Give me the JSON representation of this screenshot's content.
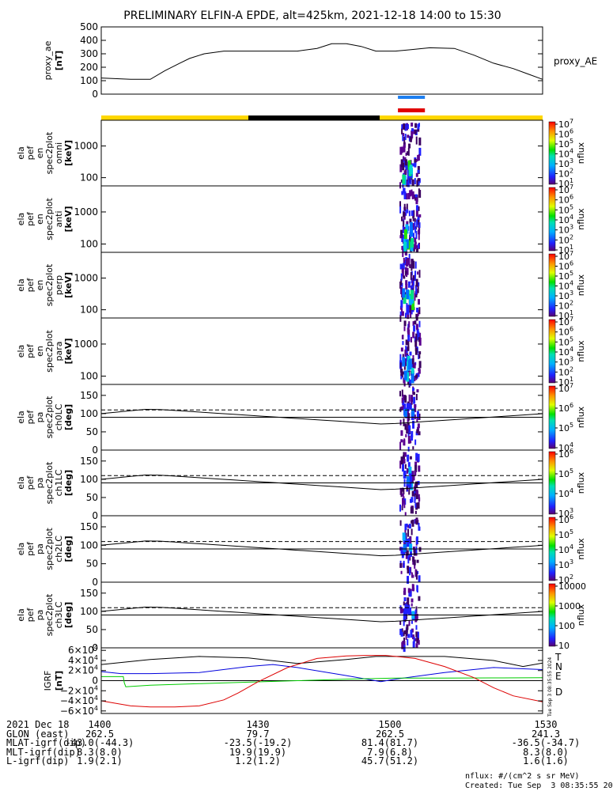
{
  "title": "PRELIMINARY ELFIN-A EPDE, alt=425km, 2021-12-18 14:00 to 15:30",
  "colors": {
    "yellow": "#ffd700",
    "black": "#000000",
    "blue": "#1e7ff0",
    "red": "#e00000",
    "ibx": "#000000",
    "iby": "#0000dd",
    "ibz": "#00cc00",
    "d": "#dd0000"
  },
  "chart_data": [
    {
      "type": "line",
      "ylabel_lines": [
        "proxy_ae",
        "[nT]"
      ],
      "ylim": [
        0,
        500
      ],
      "yticks": [
        "0",
        "100",
        "200",
        "300",
        "400",
        "500"
      ],
      "ytick_values": [
        0,
        100,
        200,
        300,
        400,
        500
      ],
      "legend": "proxy_AE",
      "series": [
        {
          "x": [
            0,
            6,
            10,
            13,
            16,
            18,
            21,
            25,
            29,
            36,
            40,
            44,
            47,
            50,
            53,
            56,
            60,
            63,
            67,
            72,
            76,
            80,
            84,
            87,
            90
          ],
          "values": [
            120,
            110,
            110,
            175,
            230,
            265,
            300,
            320,
            320,
            320,
            320,
            340,
            375,
            375,
            355,
            320,
            320,
            330,
            345,
            340,
            290,
            230,
            190,
            150,
            110
          ]
        }
      ]
    },
    {
      "type": "heatmap",
      "ylabel_lines": [
        "ela",
        "pef",
        "en",
        "spec2plot",
        "omni",
        "[keV]"
      ],
      "yscale": "log",
      "ylim": [
        55,
        6500
      ],
      "yticks": [
        "100",
        "1000"
      ],
      "ytick_values": [
        100,
        1000
      ],
      "colorbar": {
        "label": "nflux",
        "ticks": [
          "10",
          "10",
          "10",
          "10",
          "10",
          "10",
          "10"
        ],
        "exponents": [
          "1",
          "2",
          "3",
          "4",
          "5",
          "6",
          "7"
        ]
      }
    },
    {
      "type": "heatmap",
      "ylabel_lines": [
        "ela",
        "pef",
        "en",
        "spec2plot",
        "anti",
        "[keV]"
      ],
      "yscale": "log",
      "ylim": [
        55,
        6500
      ],
      "yticks": [
        "100",
        "1000"
      ],
      "ytick_values": [
        100,
        1000
      ],
      "colorbar": {
        "label": "nflux",
        "ticks": [
          "10",
          "10",
          "10",
          "10",
          "10",
          "10",
          "10"
        ],
        "exponents": [
          "1",
          "2",
          "3",
          "4",
          "5",
          "6",
          "7"
        ]
      }
    },
    {
      "type": "heatmap",
      "ylabel_lines": [
        "ela",
        "pef",
        "en",
        "spec2plot",
        "perp",
        "[keV]"
      ],
      "yscale": "log",
      "ylim": [
        55,
        6500
      ],
      "yticks": [
        "100",
        "1000"
      ],
      "ytick_values": [
        100,
        1000
      ],
      "colorbar": {
        "label": "nflux",
        "ticks": [
          "10",
          "10",
          "10",
          "10",
          "10",
          "10",
          "10"
        ],
        "exponents": [
          "1",
          "2",
          "3",
          "4",
          "5",
          "6",
          "7"
        ]
      }
    },
    {
      "type": "heatmap",
      "ylabel_lines": [
        "ela",
        "pef",
        "en",
        "spec2plot",
        "para",
        "[keV]"
      ],
      "yscale": "log",
      "ylim": [
        55,
        6500
      ],
      "yticks": [
        "100",
        "1000"
      ],
      "ytick_values": [
        100,
        1000
      ],
      "colorbar": {
        "label": "nflux",
        "ticks": [
          "10",
          "10",
          "10",
          "10",
          "10",
          "10",
          "10"
        ],
        "exponents": [
          "1",
          "2",
          "3",
          "4",
          "5",
          "6",
          "7"
        ]
      }
    },
    {
      "type": "heatmap",
      "ylabel_lines": [
        "ela",
        "pef",
        "pa",
        "spec2plot",
        "ch0LC",
        "[deg]"
      ],
      "ylim": [
        0,
        180
      ],
      "yticks": [
        "0",
        "50",
        "100",
        "150"
      ],
      "ytick_values": [
        0,
        50,
        100,
        150
      ],
      "colorbar": {
        "label": "nflux",
        "ticks": [
          "10",
          "10",
          "10",
          "10"
        ],
        "exponents": [
          "4",
          "5",
          "6",
          "7"
        ]
      }
    },
    {
      "type": "heatmap",
      "ylabel_lines": [
        "ela",
        "pef",
        "pa",
        "spec2plot",
        "ch1LC",
        "[deg]"
      ],
      "ylim": [
        0,
        180
      ],
      "yticks": [
        "0",
        "50",
        "100",
        "150"
      ],
      "ytick_values": [
        0,
        50,
        100,
        150
      ],
      "colorbar": {
        "label": "nflux",
        "ticks": [
          "10",
          "10",
          "10",
          "10"
        ],
        "exponents": [
          "3",
          "4",
          "5",
          "6"
        ]
      }
    },
    {
      "type": "heatmap",
      "ylabel_lines": [
        "ela",
        "pef",
        "pa",
        "spec2plot",
        "ch2LC",
        "[deg]"
      ],
      "ylim": [
        0,
        180
      ],
      "yticks": [
        "0",
        "50",
        "100",
        "150"
      ],
      "ytick_values": [
        0,
        50,
        100,
        150
      ],
      "colorbar": {
        "label": "nflux",
        "ticks": [
          "10",
          "10",
          "10",
          "10",
          "10"
        ],
        "exponents": [
          "2",
          "3",
          "4",
          "5",
          "6"
        ]
      }
    },
    {
      "type": "heatmap",
      "ylabel_lines": [
        "ela",
        "pef",
        "pa",
        "spec2plot",
        "ch3LC",
        "[deg]"
      ],
      "ylim": [
        0,
        180
      ],
      "yticks": [
        "0",
        "50",
        "100",
        "150"
      ],
      "ytick_values": [
        0,
        50,
        100,
        150
      ],
      "colorbar": {
        "label": "nflux",
        "ticks": [
          "10",
          "100",
          "1000",
          "10000"
        ]
      }
    },
    {
      "type": "line",
      "ylabel_lines": [
        "IGRF",
        "[nT]"
      ],
      "ylim": [
        -65000,
        65000
      ],
      "yticks": [
        "-6",
        "-4",
        "-2",
        "0",
        "2",
        "4",
        "6"
      ],
      "ytick_exponent": "4",
      "ytick_values": [
        -60000,
        -40000,
        -20000,
        0,
        20000,
        40000,
        60000
      ],
      "series": [
        {
          "name": "T",
          "x": [
            0,
            10,
            20,
            30,
            40,
            50,
            56,
            60,
            70,
            80,
            86,
            90
          ],
          "values": [
            32000,
            42000,
            48000,
            45000,
            34000,
            42000,
            48000,
            48000,
            48000,
            40000,
            28000,
            35000
          ]
        },
        {
          "name": "N",
          "x": [
            0,
            4,
            10,
            20,
            30,
            35,
            40,
            50,
            57,
            60,
            70,
            80,
            90
          ],
          "values": [
            18000,
            14000,
            14000,
            16000,
            28000,
            32000,
            26000,
            10000,
            -2000,
            3000,
            16000,
            26000,
            22000
          ]
        },
        {
          "name": "E",
          "x": [
            0,
            4.5,
            4.7,
            5,
            10,
            20,
            30,
            40,
            50,
            60,
            70,
            80,
            90
          ],
          "values": [
            8000,
            8000,
            -4000,
            -12000,
            -9000,
            -6000,
            -3000,
            0,
            3000,
            5000,
            5000,
            5500,
            6000
          ]
        },
        {
          "name": "D",
          "x": [
            0,
            6,
            10,
            15,
            20,
            25,
            28,
            32,
            38,
            44,
            50,
            54,
            58,
            64,
            70,
            76,
            80,
            84,
            90
          ],
          "values": [
            -40000,
            -50000,
            -52000,
            -52000,
            -50000,
            -38000,
            -24000,
            -2000,
            26000,
            44000,
            49000,
            50000,
            50000,
            44000,
            28000,
            6000,
            -14000,
            -30000,
            -42000
          ]
        }
      ]
    }
  ],
  "labels": {
    "T": "T",
    "N": "N",
    "E": "E",
    "D": "D",
    "side_stamp": "Tue Sep  3 08:35:55 2024"
  },
  "footer": {
    "rows": [
      {
        "label": "2021 Dec 18",
        "values": [
          "1400",
          "1430",
          "1500",
          "1530"
        ]
      },
      {
        "label": "GLON (east)",
        "values": [
          "262.5",
          "79.7",
          "262.5",
          "241.3"
        ]
      },
      {
        "label": "MLAT-igrf(dip)",
        "values": [
          "-43.0(-44.3)",
          "-23.5(-19.2)",
          "81.4(81.7)",
          "-36.5(-34.7)"
        ]
      },
      {
        "label": "MLT-igrf(dip)",
        "values": [
          "8.3(8.0)",
          "19.9(19.9)",
          "7.9(6.8)",
          "8.3(8.0)"
        ]
      },
      {
        "label": "L-igrf(dip)",
        "values": [
          "1.9(2.1)",
          "1.2(1.2)",
          "45.7(51.2)",
          "1.6(1.6)"
        ]
      }
    ],
    "units": "nflux: #/(cm^2 s sr MeV)",
    "created": "Created: Tue Sep  3 08:35:55 2024"
  }
}
